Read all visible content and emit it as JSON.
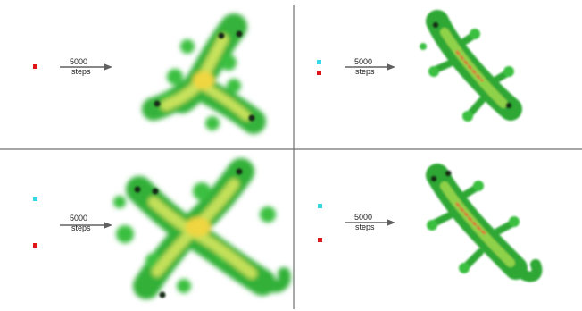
{
  "panels": [
    {
      "arrow_label": {
        "line1": "5000",
        "line2": "steps"
      },
      "seeds": [
        "red"
      ],
      "result": "lizard-three-limbed"
    },
    {
      "arrow_label": {
        "line1": "5000",
        "line2": "steps"
      },
      "seeds": [
        "cyan",
        "red"
      ],
      "result": "lizard-diagonal"
    },
    {
      "arrow_label": {
        "line1": "5000",
        "line2": "steps"
      },
      "seeds": [
        "cyan",
        "red"
      ],
      "result": "lizard-x-shaped"
    },
    {
      "arrow_label": {
        "line1": "5000",
        "line2": "steps"
      },
      "seeds": [
        "cyan",
        "red"
      ],
      "result": "lizard-diagonal"
    }
  ],
  "colors": {
    "seed_red": "#e0151a",
    "seed_cyan": "#35d9e6",
    "divider": "#707070",
    "arrow": "#606060",
    "lizard_dark": "#1f8f2c",
    "lizard_mid": "#3bbf3f",
    "lizard_light": "#b9e35a",
    "lizard_core": "#f0d640",
    "lizard_spot": "#d9473a",
    "eye": "#162a16"
  }
}
